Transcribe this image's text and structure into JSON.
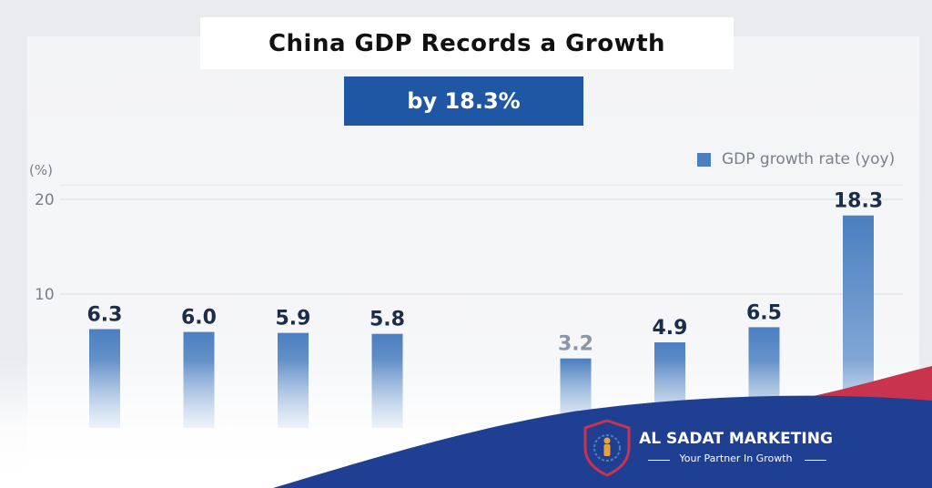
{
  "title": "China GDP Records a Growth",
  "subtitle": "by 18.3%",
  "legend": {
    "label": "GDP growth rate (yoy)",
    "color": "#4b7fc0"
  },
  "brand": {
    "name": "AL SADAT MARKETING",
    "tagline": "Your Partner In Growth",
    "logo_icon": "shield-logo-icon"
  },
  "chart_data": {
    "type": "bar",
    "title": "China GDP Records a Growth",
    "subtitle": "by 18.3%",
    "ylabel": "(%)",
    "ylim": [
      0,
      22
    ],
    "yticks": [
      10,
      20
    ],
    "grid": true,
    "legend_position": "top-right",
    "categories": [
      "",
      "",
      "",
      "",
      "",
      "",
      "",
      "",
      ""
    ],
    "series": [
      {
        "name": "GDP growth rate (yoy)",
        "color": "#4b7fc0",
        "values": [
          6.3,
          6.0,
          5.9,
          5.8,
          null,
          3.2,
          4.9,
          6.5,
          18.3
        ],
        "labels": [
          "6.3",
          "6.0",
          "5.9",
          "5.8",
          "",
          "3.2",
          "4.9",
          "6.5",
          "18.3"
        ]
      }
    ]
  }
}
